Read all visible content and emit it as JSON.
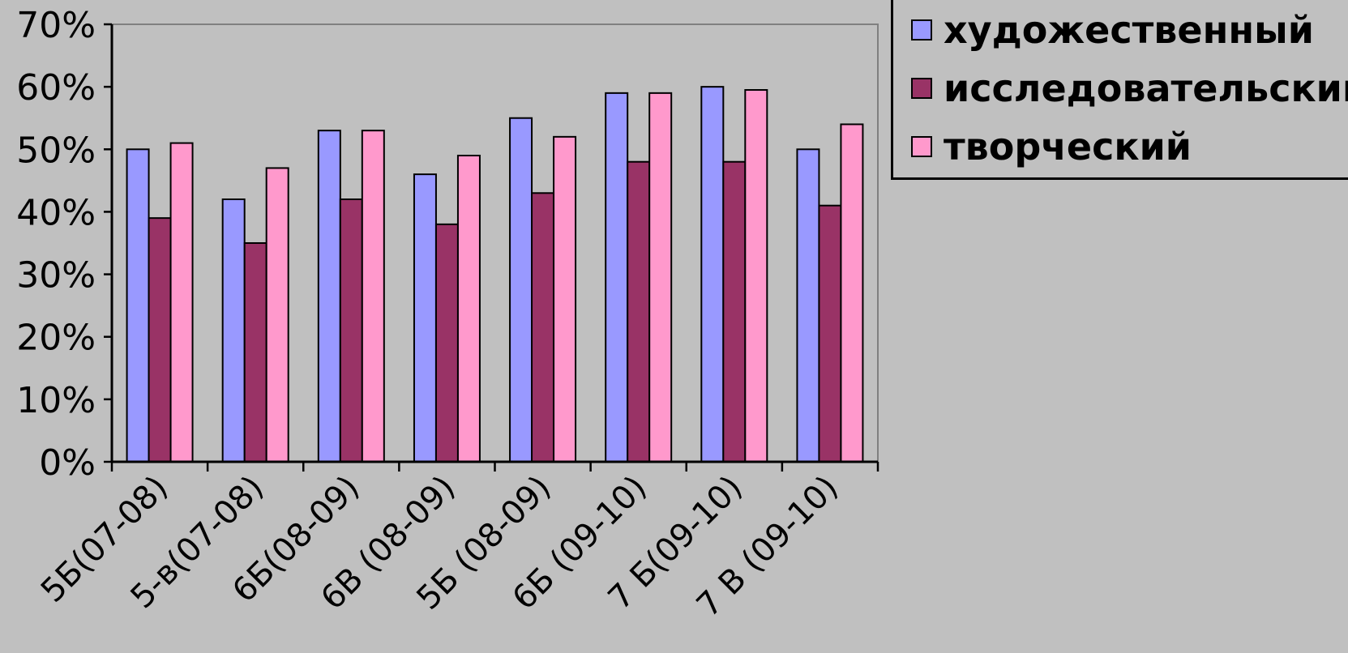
{
  "chart_data": {
    "type": "bar",
    "categories": [
      "5Б(07-08)",
      "5-в(07-08)",
      "6Б(08-09)",
      "6В (08-09)",
      "5Б (08-09)",
      "6Б (09-10)",
      "7 Б(09-10)",
      "7 В (09-10)"
    ],
    "series": [
      {
        "name": "художественный",
        "color": "#9999ff",
        "values": [
          50,
          42,
          53,
          46,
          55,
          59,
          60,
          50
        ]
      },
      {
        "name": "исследовательский",
        "color": "#993366",
        "values": [
          39,
          35,
          42,
          38,
          43,
          48,
          48,
          41
        ]
      },
      {
        "name": "творческий",
        "color": "#ff99cc",
        "values": [
          51,
          47,
          53,
          49,
          52,
          59,
          59.5,
          54
        ]
      }
    ],
    "ylim": [
      0,
      70
    ],
    "yticks": [
      "0%",
      "10%",
      "20%",
      "30%",
      "40%",
      "50%",
      "60%",
      "70%"
    ],
    "ytick_values": [
      0,
      10,
      20,
      30,
      40,
      50,
      60,
      70
    ],
    "grid": false,
    "legend_position": "top-right",
    "plot_area_color": "#c0c0c0"
  }
}
